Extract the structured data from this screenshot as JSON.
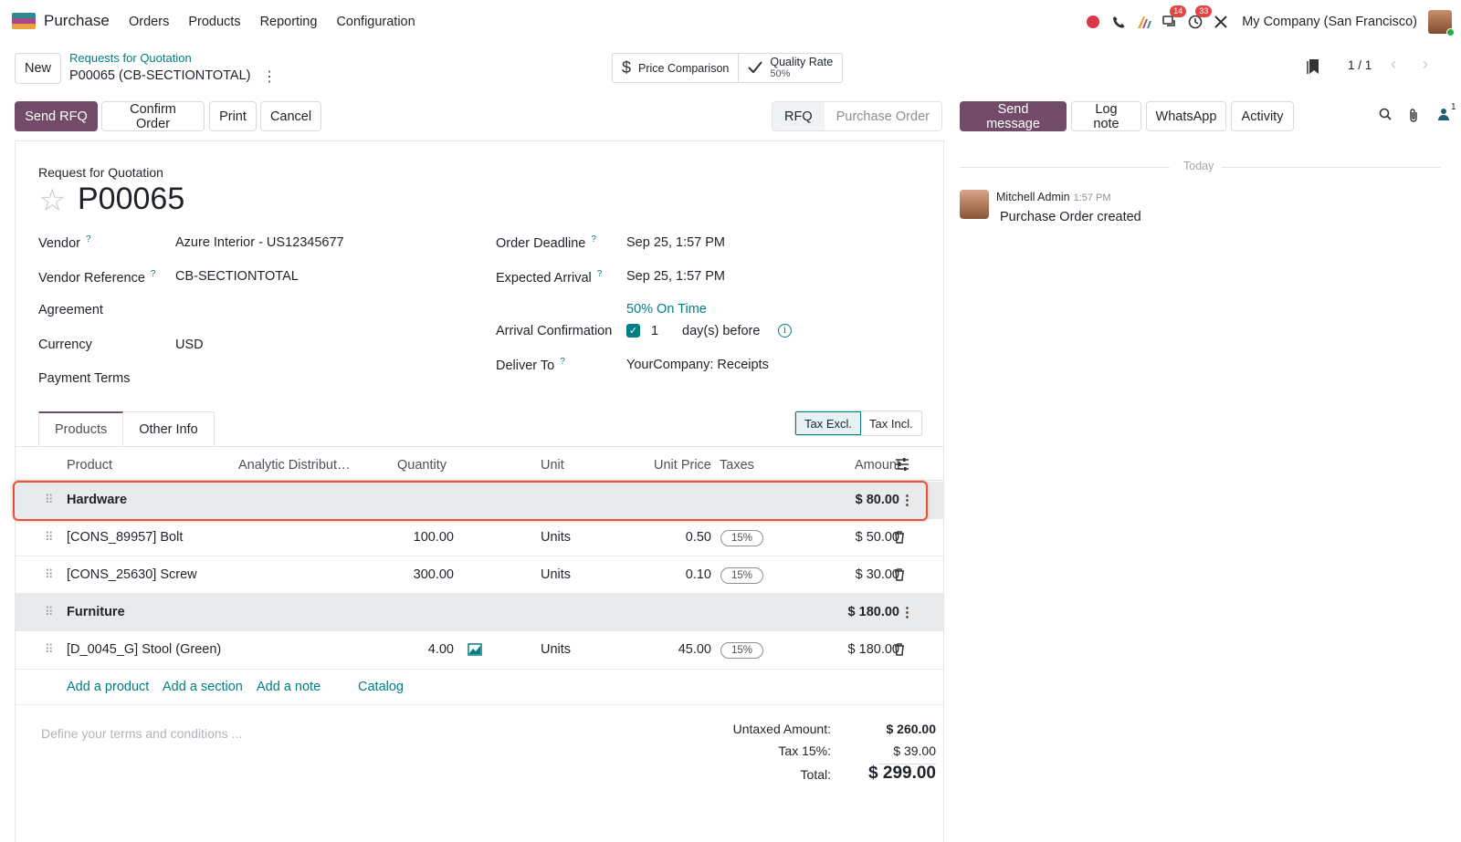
{
  "navbar": {
    "app_name": "Purchase",
    "menu": [
      "Orders",
      "Products",
      "Reporting",
      "Configuration"
    ],
    "messages_badge": "14",
    "activities_badge": "33",
    "company": "My Company (San Francisco)"
  },
  "control": {
    "new_label": "New",
    "breadcrumb_parent": "Requests for Quotation",
    "breadcrumb_current": "P00065 (CB-SECTIONTOTAL)",
    "price_comparison": "Price Comparison",
    "quality_rate_label": "Quality Rate",
    "quality_rate_value": "50%",
    "pager": "1 / 1"
  },
  "actions": {
    "send_rfq": "Send RFQ",
    "confirm_order": "Confirm Order",
    "print": "Print",
    "cancel": "Cancel"
  },
  "statusbar": {
    "stages": [
      "RFQ",
      "Purchase Order"
    ],
    "active": "RFQ"
  },
  "form": {
    "doc_type": "Request for Quotation",
    "name": "P00065",
    "help_mark": "?",
    "vendor_label": "Vendor",
    "vendor_value": "Azure Interior - US12345677",
    "vendor_ref_label": "Vendor Reference",
    "vendor_ref_value": "CB-SECTIONTOTAL",
    "agreement_label": "Agreement",
    "currency_label": "Currency",
    "currency_value": "USD",
    "payment_terms_label": "Payment Terms",
    "order_deadline_label": "Order Deadline",
    "order_deadline_value": "Sep 25, 1:57 PM",
    "expected_arrival_label": "Expected Arrival",
    "expected_arrival_value": "Sep 25, 1:57 PM",
    "on_time": "50% On Time",
    "arrival_conf_label": "Arrival Confirmation",
    "arrival_conf_checked": true,
    "arrival_days": "1",
    "arrival_days_suffix": "day(s) before",
    "deliver_to_label": "Deliver To",
    "deliver_to_value": "YourCompany: Receipts"
  },
  "tabs": {
    "products": "Products",
    "other_info": "Other Info",
    "tax_excl": "Tax Excl.",
    "tax_incl": "Tax Incl."
  },
  "table": {
    "headers": {
      "product": "Product",
      "analytic": "Analytic Distribut…",
      "quantity": "Quantity",
      "unit": "Unit",
      "unit_price": "Unit Price",
      "taxes": "Taxes",
      "amount": "Amount"
    },
    "rows": [
      {
        "section": "Hardware",
        "amount": "$ 80.00"
      },
      {
        "product": "[CONS_89957] Bolt",
        "quantity": "100.00",
        "unit": "Units",
        "price": "0.50",
        "tax": "15%",
        "amount": "$ 50.00"
      },
      {
        "product": "[CONS_25630] Screw",
        "quantity": "300.00",
        "unit": "Units",
        "price": "0.10",
        "tax": "15%",
        "amount": "$ 30.00"
      },
      {
        "section": "Furniture",
        "amount": "$ 180.00"
      },
      {
        "product": "[D_0045_G] Stool (Green)",
        "quantity": "4.00",
        "unit": "Units",
        "price": "45.00",
        "tax": "15%",
        "amount": "$ 180.00"
      }
    ],
    "add_product": "Add a product",
    "add_section": "Add a section",
    "add_note": "Add a note",
    "catalog": "Catalog"
  },
  "totals": {
    "terms_placeholder": "Define your terms and conditions ...",
    "untaxed_label": "Untaxed Amount:",
    "untaxed_value": "$ 260.00",
    "tax_label": "Tax 15%:",
    "tax_value": "$ 39.00",
    "total_label": "Total:",
    "total_value": "$ 299.00"
  },
  "chatter": {
    "send_message": "Send message",
    "log_note": "Log note",
    "whatsapp": "WhatsApp",
    "activity": "Activity",
    "followers_count": "1",
    "date_separator": "Today",
    "message_author": "Mitchell Admin",
    "message_time": "1:57 PM",
    "message_body": "Purchase Order created"
  },
  "colors": {
    "brand": "#714b67",
    "link": "#017e84",
    "highlight": "#e2543a"
  }
}
